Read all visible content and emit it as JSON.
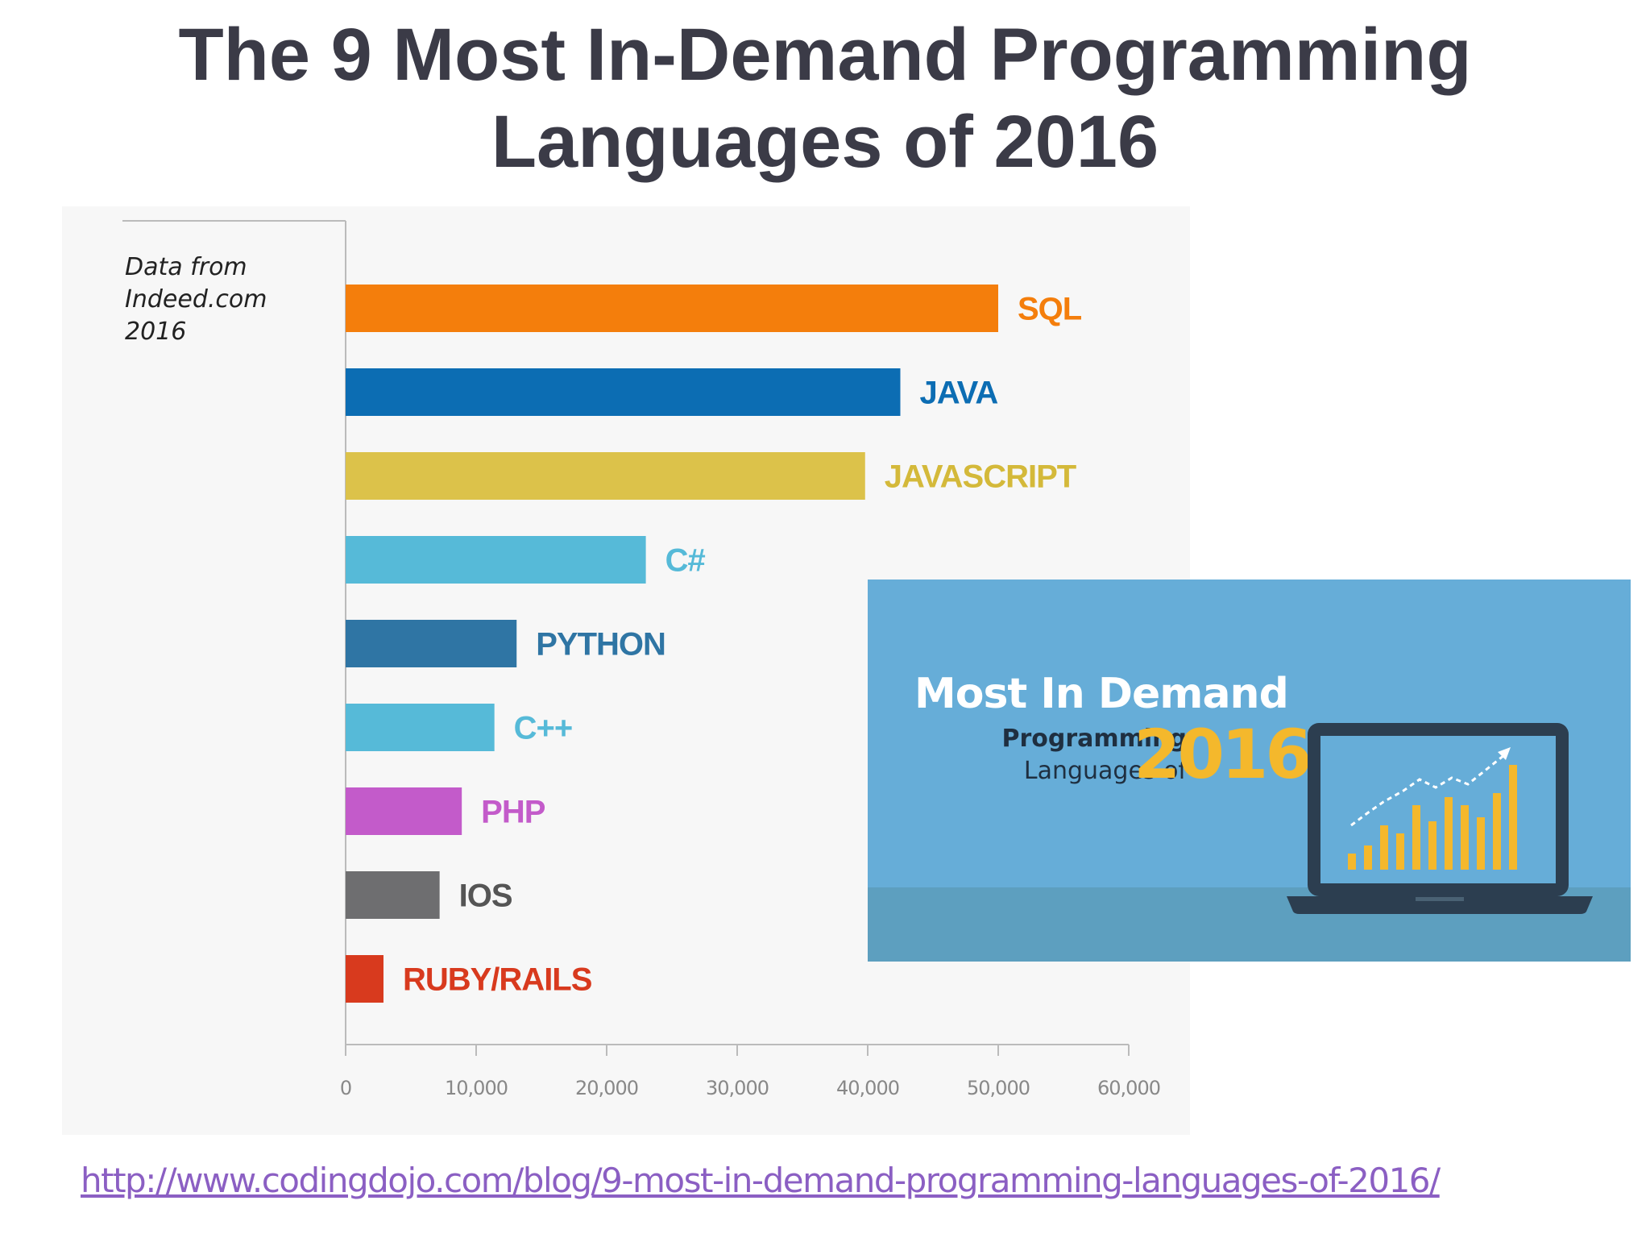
{
  "title": {
    "line1": "The 9 Most In-Demand Programming",
    "line2": "Languages of 2016"
  },
  "source_note": {
    "line1": "Data from",
    "line2": "Indeed.com",
    "line3": "2016"
  },
  "chart_data": {
    "type": "bar",
    "orientation": "horizontal",
    "categories": [
      "SQL",
      "JAVA",
      "JAVASCRIPT",
      "C#",
      "PYTHON",
      "C++",
      "PHP",
      "IOS",
      "RUBY/RAILS"
    ],
    "values": [
      50000,
      42500,
      39800,
      23000,
      13100,
      11400,
      8900,
      7200,
      2900
    ],
    "colors": [
      "#f47e0c",
      "#0c6db3",
      "#dcc24a",
      "#56bad8",
      "#2f75a4",
      "#56bad8",
      "#c35bca",
      "#6e6e70",
      "#d83a1e"
    ],
    "label_colors": [
      "#f47e0c",
      "#0c6db3",
      "#d4b93a",
      "#56bad8",
      "#2f75a4",
      "#56bad8",
      "#c35bca",
      "#555555",
      "#d83a1e"
    ],
    "x_ticks": [
      0,
      10000,
      20000,
      30000,
      40000,
      50000,
      60000
    ],
    "x_tick_labels": [
      "0",
      "10,000",
      "20,000",
      "30,000",
      "40,000",
      "50,000",
      "60,000"
    ],
    "xlim": [
      0,
      60000
    ],
    "grid": false
  },
  "thumbnail": {
    "title": "Most In Demand",
    "sub_line1": "Programming",
    "sub_line2": "Languages of",
    "year": "2016",
    "colors": {
      "background": "#66add8",
      "year": "#f4b82c",
      "bars": "#f4b82c"
    }
  },
  "source_link": "http://www.codingdojo.com/blog/9-most-in-demand-programming-languages-of-2016/"
}
